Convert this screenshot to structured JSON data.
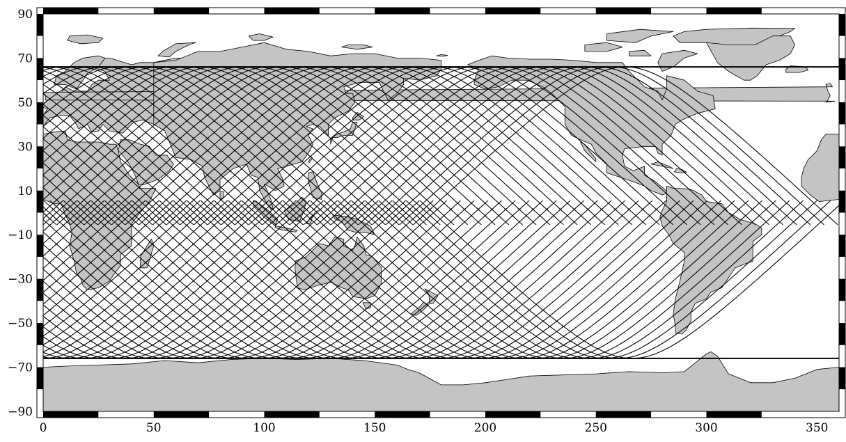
{
  "chart_data": {
    "type": "map",
    "projection": "equirectangular",
    "xlim": [
      0,
      360
    ],
    "ylim": [
      -90,
      90
    ],
    "x_ticks": [
      "0",
      "50",
      "100",
      "150",
      "200",
      "250",
      "300",
      "350"
    ],
    "y_ticks": [
      "90",
      "70",
      "50",
      "30",
      "10",
      "−10",
      "−30",
      "−50",
      "−70",
      "−90"
    ],
    "x_tick_values": [
      0,
      50,
      100,
      150,
      200,
      250,
      300,
      350
    ],
    "y_tick_values": [
      90,
      70,
      50,
      30,
      10,
      -10,
      -30,
      -50,
      -70,
      -90
    ],
    "ground_tracks": {
      "max_latitude": 66,
      "ascending_passes": 58,
      "descending_passes": 58,
      "pass_longitude_spacing_deg": 6.2
    },
    "grid": false,
    "frame_style": "alternating black/white checkered border",
    "colors": {
      "land": "#c4c4c4",
      "ocean": "#ffffff",
      "tracks": "#000000",
      "frame_dark": "#000000",
      "frame_light": "#ffffff"
    }
  }
}
